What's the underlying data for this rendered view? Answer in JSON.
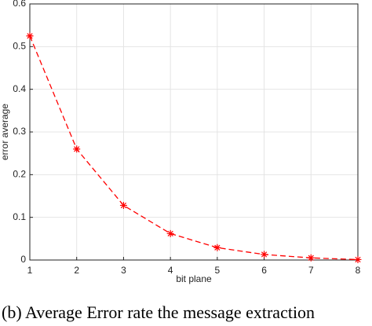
{
  "chart_data": {
    "type": "line",
    "x_label": "bit plane",
    "y_label": "error average",
    "caption": "(b) Average Error rate the message extraction",
    "x": [
      1,
      2,
      3,
      4,
      5,
      6,
      7,
      8
    ],
    "series": [
      {
        "color": "#ff0000",
        "values": [
          0.525,
          0.26,
          0.128,
          0.062,
          0.029,
          0.013,
          0.005,
          0.001
        ]
      }
    ],
    "xlim": [
      1,
      8
    ],
    "xticks": [
      1,
      2,
      3,
      4,
      5,
      6,
      7,
      8
    ],
    "ylim": [
      0,
      0.6
    ],
    "yticks": [
      0,
      0.1,
      0.2,
      0.3,
      0.4,
      0.5,
      0.6
    ],
    "grid": true
  }
}
